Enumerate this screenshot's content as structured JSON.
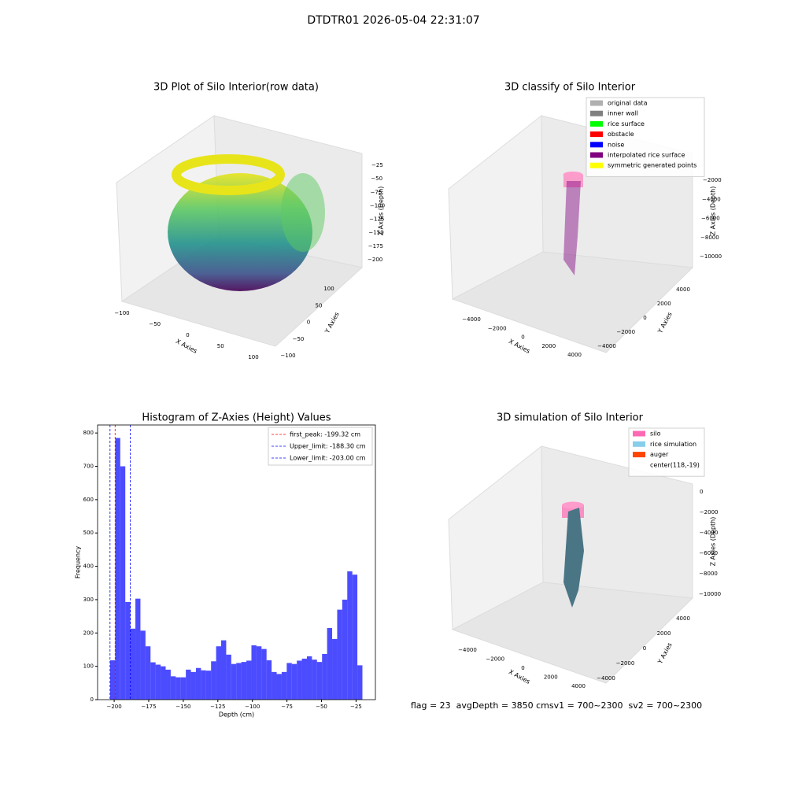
{
  "title": "DTDTR01 2026-05-04 22:31:07",
  "footer": "flag = 23  avgDepth = 3850 cmsv1 = 700~2300  sv2 = 700~2300",
  "chart_data": [
    {
      "type": "scatter3d",
      "title": "3D Plot of Silo Interior(row data)",
      "x_label": "X Axies",
      "y_label": "Y Axies",
      "z_label": "Z Axies (Depth)",
      "xlim": [
        -100,
        100
      ],
      "ylim": [
        -100,
        100
      ],
      "zlim": [
        -25,
        -200
      ],
      "xticks": [
        {
          "value": -100,
          "label": "−100"
        },
        {
          "value": -50,
          "label": "−50"
        },
        0,
        50,
        100
      ],
      "yticks": [
        {
          "value": -100,
          "label": "−100"
        },
        {
          "value": -50,
          "label": "−50"
        },
        0,
        50,
        100
      ],
      "zticks": [
        {
          "value": -25,
          "label": "−25"
        },
        {
          "value": -50,
          "label": "−50"
        },
        {
          "value": -75,
          "label": "−75"
        },
        {
          "value": -100,
          "label": "−100"
        },
        {
          "value": -125,
          "label": "−125"
        },
        {
          "value": -150,
          "label": "−150"
        },
        {
          "value": -175,
          "label": "−175"
        },
        {
          "value": -200,
          "label": "−200"
        }
      ]
    },
    {
      "type": "scatter3d",
      "title": "3D classify of Silo Interior",
      "x_label": "X Axies",
      "y_label": "Y Axies",
      "z_label": "Z Axies (Depth)",
      "xlim": [
        -4000,
        4000
      ],
      "ylim": [
        -4000,
        4000
      ],
      "zlim": [
        -2000,
        -10000
      ],
      "xticks": [
        {
          "value": -4000,
          "label": "−4000"
        },
        {
          "value": -2000,
          "label": "−2000"
        },
        0,
        2000,
        4000
      ],
      "yticks": [
        {
          "value": -4000,
          "label": "−4000"
        },
        {
          "value": -2000,
          "label": "−2000"
        },
        0,
        2000,
        4000
      ],
      "zticks": [
        {
          "value": -2000,
          "label": "−2000"
        },
        {
          "value": -4000,
          "label": "−4000"
        },
        {
          "value": -6000,
          "label": "−6000"
        },
        {
          "value": -8000,
          "label": "−8000"
        },
        {
          "value": -10000,
          "label": "−10000"
        }
      ],
      "legend": [
        {
          "name": "original data",
          "color": "#b0b0b0"
        },
        {
          "name": "inner wall",
          "color": "#808080"
        },
        {
          "name": "rice surface",
          "color": "#00ff00"
        },
        {
          "name": "obstacle",
          "color": "#ff0000"
        },
        {
          "name": "noise",
          "color": "#0000ff"
        },
        {
          "name": "interpolated rice surface",
          "color": "#800080"
        },
        {
          "name": "symmetric generated points",
          "color": "#ffff00"
        }
      ]
    },
    {
      "type": "histogram",
      "title": "Histogram of Z-Axies (Height) Values",
      "x_label": "Depth (cm)",
      "y_label": "Frequency",
      "color": "#0000ff",
      "bins": [
        -202.9,
        -199.25,
        -195.6,
        -191.95,
        -188.3,
        -184.65,
        -181.0,
        -177.35,
        -173.7,
        -170.05,
        -166.4,
        -162.75,
        -159.1,
        -155.45,
        -151.8,
        -148.15,
        -144.5,
        -140.85,
        -137.2,
        -133.55,
        -129.9,
        -126.25,
        -122.6,
        -118.95,
        -115.3,
        -111.65,
        -108.0,
        -104.35,
        -100.7,
        -97.05,
        -93.4,
        -89.75,
        -86.1,
        -82.45,
        -78.8,
        -75.15,
        -71.5,
        -67.85,
        -64.2,
        -60.55,
        -56.9,
        -53.25,
        -49.6,
        -45.95,
        -42.3,
        -38.65,
        -35.0,
        -31.35,
        -27.7,
        -24.05,
        -20.4
      ],
      "counts": [
        118,
        785,
        700,
        293,
        213,
        303,
        207,
        160,
        112,
        105,
        100,
        90,
        70,
        67,
        67,
        90,
        83,
        95,
        88,
        87,
        115,
        160,
        178,
        135,
        107,
        110,
        113,
        117,
        163,
        160,
        152,
        118,
        83,
        77,
        83,
        110,
        107,
        117,
        123,
        130,
        120,
        113,
        137,
        215,
        182,
        270,
        300,
        385,
        375,
        103
      ],
      "xlim": [
        -212,
        -11
      ],
      "ylim": [
        0,
        824
      ],
      "xticks": [
        {
          "value": -200,
          "label": "−200"
        },
        {
          "value": -175,
          "label": "−175"
        },
        {
          "value": -150,
          "label": "−150"
        },
        {
          "value": -125,
          "label": "−125"
        },
        {
          "value": -100,
          "label": "−100"
        },
        {
          "value": -75,
          "label": "−75"
        },
        {
          "value": -50,
          "label": "−50"
        },
        {
          "value": -25,
          "label": "−25"
        }
      ],
      "yticks": [
        0,
        100,
        200,
        300,
        400,
        500,
        600,
        700,
        800
      ],
      "vlines": [
        {
          "name": "first_peak: -199.32 cm",
          "value": -199.32,
          "color": "#ff0000"
        },
        {
          "name": "Upper_limit: -188.30 cm",
          "value": -188.3,
          "color": "#0000ff"
        },
        {
          "name": "Lower_limit: -203.00 cm",
          "value": -203.0,
          "color": "#0000ff"
        }
      ],
      "legend_position": "upper right"
    },
    {
      "type": "scatter3d",
      "title": "3D simulation of Silo Interior",
      "x_label": "X Axies",
      "y_label": "Y Axies",
      "z_label": "Z Axies (Depth)",
      "xlim": [
        -4000,
        4000
      ],
      "ylim": [
        -4000,
        4000
      ],
      "zlim": [
        0,
        -10000
      ],
      "xticks": [
        {
          "value": -4000,
          "label": "−4000"
        },
        {
          "value": -2000,
          "label": "−2000"
        },
        0,
        2000,
        4000
      ],
      "yticks": [
        {
          "value": -4000,
          "label": "−4000"
        },
        {
          "value": -2000,
          "label": "−2000"
        },
        0,
        2000,
        4000
      ],
      "zticks": [
        0,
        {
          "value": -2000,
          "label": "−2000"
        },
        {
          "value": -4000,
          "label": "−4000"
        },
        {
          "value": -6000,
          "label": "−6000"
        },
        {
          "value": -8000,
          "label": "−8000"
        },
        {
          "value": -10000,
          "label": "−10000"
        }
      ],
      "legend": [
        {
          "name": "silo",
          "color": "#ff69b4"
        },
        {
          "name": "rice simulation",
          "color": "#87ceeb"
        },
        {
          "name": "auger",
          "color": "#ff4500"
        },
        {
          "name": "center(118,-19)"
        }
      ]
    }
  ]
}
